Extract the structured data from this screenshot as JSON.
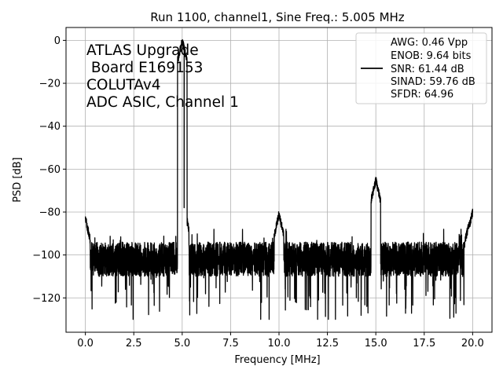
{
  "chart_data": {
    "type": "line",
    "title": "Run 1100, channel1, Sine Freq.: 5.005 MHz",
    "xlabel": "Frequency [MHz]",
    "ylabel": "PSD [dB]",
    "xlim": [
      -1.0,
      21.0
    ],
    "ylim": [
      -136,
      6
    ],
    "xticks": [
      0,
      2.5,
      5,
      7.5,
      10,
      12.5,
      15,
      17.5,
      20
    ],
    "xtick_labels": [
      "0.0",
      "2.5",
      "5.0",
      "7.5",
      "10.0",
      "12.5",
      "15.0",
      "17.5",
      "20.0"
    ],
    "yticks": [
      0,
      -20,
      -40,
      -60,
      -80,
      -100,
      -120
    ],
    "ytick_labels": [
      "0",
      "−20",
      "−40",
      "−60",
      "−80",
      "−100",
      "−120"
    ],
    "grid": true,
    "annotation_lines": [
      "ATLAS Upgrade",
      " Board E169153",
      "COLUTAv4",
      "ADC ASIC, Channel 1"
    ],
    "legend": {
      "placement": "top-right",
      "lines": [
        "AWG: 0.46 Vpp",
        "ENOB: 9.64 bits",
        "SNR: 61.44 dB",
        "SINAD: 59.76 dB",
        "SFDR: 64.96"
      ]
    },
    "series": [
      {
        "color": "#000000",
        "noise_floor_db": -102,
        "noise_min_db": -130,
        "noise_max_db": -88,
        "peaks": [
          {
            "x": 0.0,
            "y": -83
          },
          {
            "x": 5.005,
            "y": 0
          },
          {
            "x": 5.1,
            "y": -78
          },
          {
            "x": 10.0,
            "y": -81
          },
          {
            "x": 15.0,
            "y": -65
          },
          {
            "x": 19.8,
            "y": -86
          },
          {
            "x": 20.0,
            "y": -80
          }
        ]
      }
    ]
  }
}
